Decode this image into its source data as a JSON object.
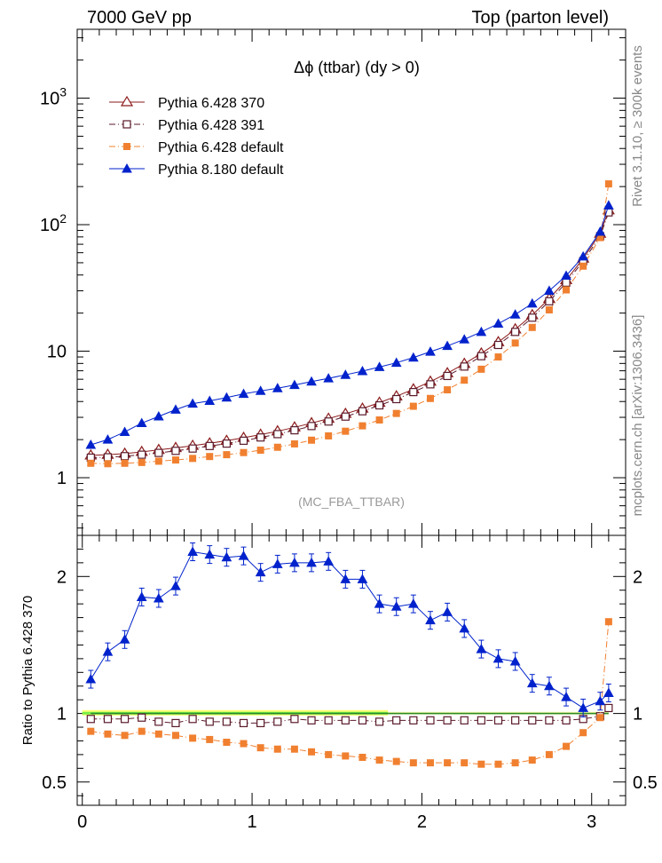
{
  "header": {
    "left": "7000 GeV pp",
    "right": "Top (parton level)"
  },
  "side_labels": {
    "rivet": "Rivet 3.1.10, ≥ 300k events",
    "mcplots": "mcplots.cern.ch [arXiv:1306.3436]"
  },
  "chart_data": [
    {
      "type": "line",
      "title": "Δϕ (ttbar) (dy > 0)",
      "watermark": "(MC_FBA_TTBAR)",
      "xlabel": "",
      "ylabel": "",
      "yscale": "log",
      "xlim": [
        -0.03,
        3.2
      ],
      "ylim": [
        0.35,
        3500
      ],
      "x_ticks": [
        "0",
        "1",
        "2",
        "3"
      ],
      "y_ticks": [
        "1",
        "10",
        "10^2",
        "10^3"
      ],
      "legend_position": "top-left",
      "x": [
        0.05,
        0.15,
        0.25,
        0.35,
        0.45,
        0.55,
        0.65,
        0.75,
        0.85,
        0.95,
        1.05,
        1.15,
        1.25,
        1.35,
        1.45,
        1.55,
        1.65,
        1.75,
        1.85,
        1.95,
        2.05,
        2.15,
        2.25,
        2.35,
        2.45,
        2.55,
        2.65,
        2.75,
        2.85,
        2.95,
        3.05,
        3.1
      ],
      "series": [
        {
          "name": "Pythia 6.428 370",
          "color": "#8b1a1a",
          "marker": "open-triangle",
          "line": "solid",
          "values": [
            1.5,
            1.52,
            1.55,
            1.6,
            1.66,
            1.72,
            1.79,
            1.87,
            1.96,
            2.07,
            2.19,
            2.33,
            2.5,
            2.7,
            2.93,
            3.2,
            3.52,
            3.92,
            4.4,
            5.0,
            5.75,
            6.7,
            7.95,
            9.6,
            11.8,
            14.9,
            19.3,
            26.0,
            36.5,
            54.0,
            85.0,
            130.0
          ]
        },
        {
          "name": "Pythia 6.428 391",
          "color": "#5a1a2a",
          "marker": "open-square",
          "line": "dash-dot",
          "values": [
            1.44,
            1.45,
            1.48,
            1.52,
            1.57,
            1.63,
            1.7,
            1.78,
            1.86,
            1.96,
            2.08,
            2.21,
            2.37,
            2.56,
            2.78,
            3.04,
            3.35,
            3.73,
            4.18,
            4.75,
            5.47,
            6.37,
            7.56,
            9.13,
            11.2,
            14.2,
            18.4,
            24.8,
            34.8,
            51.5,
            81.0,
            125.0
          ]
        },
        {
          "name": "Pythia 6.428 default",
          "color": "#f08030",
          "marker": "filled-square",
          "line": "dash-dot",
          "values": [
            1.3,
            1.29,
            1.3,
            1.32,
            1.35,
            1.38,
            1.42,
            1.47,
            1.52,
            1.58,
            1.65,
            1.74,
            1.85,
            1.98,
            2.14,
            2.33,
            2.57,
            2.86,
            3.22,
            3.67,
            4.23,
            4.95,
            5.9,
            7.2,
            9.0,
            11.6,
            15.4,
            21.2,
            30.5,
            47.0,
            79.0,
            210.0
          ]
        },
        {
          "name": "Pythia 8.180 default",
          "color": "#0022cc",
          "marker": "filled-triangle",
          "line": "solid",
          "values": [
            1.82,
            2.0,
            2.3,
            2.7,
            3.05,
            3.45,
            3.85,
            4.05,
            4.3,
            4.6,
            4.85,
            5.1,
            5.4,
            5.75,
            6.1,
            6.5,
            6.95,
            7.5,
            8.1,
            8.9,
            9.9,
            11.0,
            12.4,
            14.2,
            16.5,
            19.5,
            23.8,
            30.0,
            39.5,
            56.0,
            88.0,
            142.0
          ]
        }
      ]
    },
    {
      "type": "line",
      "title": "",
      "xlabel": "",
      "ylabel": "Ratio to Pythia 6.428 370",
      "yscale": "linear",
      "xlim": [
        -0.03,
        3.2
      ],
      "ylim": [
        0.33,
        2.3
      ],
      "x_ticks": [
        "0",
        "1",
        "2",
        "3"
      ],
      "y_ticks": [
        "0.5",
        "1",
        "2"
      ],
      "x": [
        0.05,
        0.15,
        0.25,
        0.35,
        0.45,
        0.55,
        0.65,
        0.75,
        0.85,
        0.95,
        1.05,
        1.15,
        1.25,
        1.35,
        1.45,
        1.55,
        1.65,
        1.75,
        1.85,
        1.95,
        2.05,
        2.15,
        2.25,
        2.35,
        2.45,
        2.55,
        2.65,
        2.75,
        2.85,
        2.95,
        3.05,
        3.1
      ],
      "series": [
        {
          "name": "Pythia 6.428 370",
          "color": "#2a8a2a",
          "marker": "none",
          "line": "solid",
          "values": [
            1.0,
            1.0,
            1.0,
            1.0,
            1.0,
            1.0,
            1.0,
            1.0,
            1.0,
            1.0,
            1.0,
            1.0,
            1.0,
            1.0,
            1.0,
            1.0,
            1.0,
            1.0,
            1.0,
            1.0,
            1.0,
            1.0,
            1.0,
            1.0,
            1.0,
            1.0,
            1.0,
            1.0,
            1.0,
            1.0,
            1.0,
            1.0
          ]
        },
        {
          "name": "Pythia 6.428 391",
          "color": "#5a1a2a",
          "marker": "open-square",
          "line": "dash-dot",
          "values": [
            0.96,
            0.96,
            0.96,
            0.97,
            0.94,
            0.93,
            0.96,
            0.94,
            0.94,
            0.93,
            0.93,
            0.94,
            0.96,
            0.95,
            0.95,
            0.95,
            0.95,
            0.94,
            0.95,
            0.95,
            0.95,
            0.95,
            0.95,
            0.95,
            0.95,
            0.95,
            0.95,
            0.95,
            0.95,
            0.96,
            0.98,
            1.04
          ]
        },
        {
          "name": "Pythia 6.428 default",
          "color": "#f08030",
          "marker": "filled-square",
          "line": "dash-dot",
          "values": [
            0.87,
            0.85,
            0.84,
            0.87,
            0.85,
            0.84,
            0.82,
            0.81,
            0.79,
            0.78,
            0.75,
            0.74,
            0.74,
            0.72,
            0.7,
            0.69,
            0.68,
            0.66,
            0.65,
            0.64,
            0.64,
            0.64,
            0.64,
            0.63,
            0.63,
            0.64,
            0.66,
            0.7,
            0.76,
            0.86,
            0.97,
            1.67
          ]
        },
        {
          "name": "Pythia 8.180 default",
          "color": "#0022cc",
          "marker": "filled-triangle",
          "line": "solid",
          "values": [
            1.25,
            1.45,
            1.54,
            1.85,
            1.84,
            1.93,
            2.18,
            2.16,
            2.14,
            2.15,
            2.03,
            2.09,
            2.1,
            2.1,
            2.11,
            1.98,
            1.98,
            1.8,
            1.78,
            1.8,
            1.68,
            1.74,
            1.62,
            1.47,
            1.4,
            1.38,
            1.22,
            1.2,
            1.12,
            1.04,
            1.09,
            1.15
          ]
        }
      ]
    }
  ]
}
